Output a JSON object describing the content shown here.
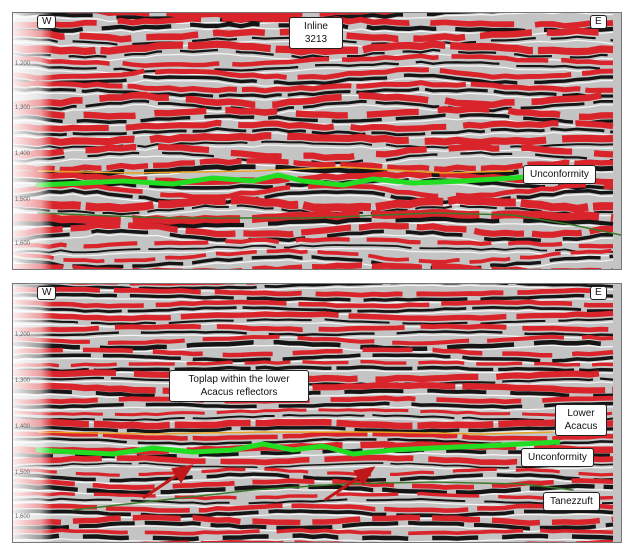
{
  "top_panel": {
    "west_label": "W",
    "east_label": "E",
    "inline_label": "Inline 3213",
    "unconformity_label": "Unconformity",
    "time_ticks": [
      "1,200",
      "1,300",
      "1,400",
      "1,500",
      "1,600"
    ]
  },
  "bottom_panel": {
    "west_label": "W",
    "east_label": "E",
    "toplap_label": "Toplap within the lower Acacus reflectors",
    "lower_acacus_label": "Lower Acacus",
    "unconformity_label": "Unconformity",
    "tanezzuft_label": "Tanezzuft",
    "time_ticks": [
      "1,200",
      "1,300",
      "1,400",
      "1,500",
      "1,600"
    ]
  },
  "colors": {
    "seismic_red": "#d8242a",
    "seismic_black": "#151515",
    "horizon_green": "#22dd22",
    "horizon_orange": "#e8a020",
    "arrow_red": "#c01818"
  }
}
